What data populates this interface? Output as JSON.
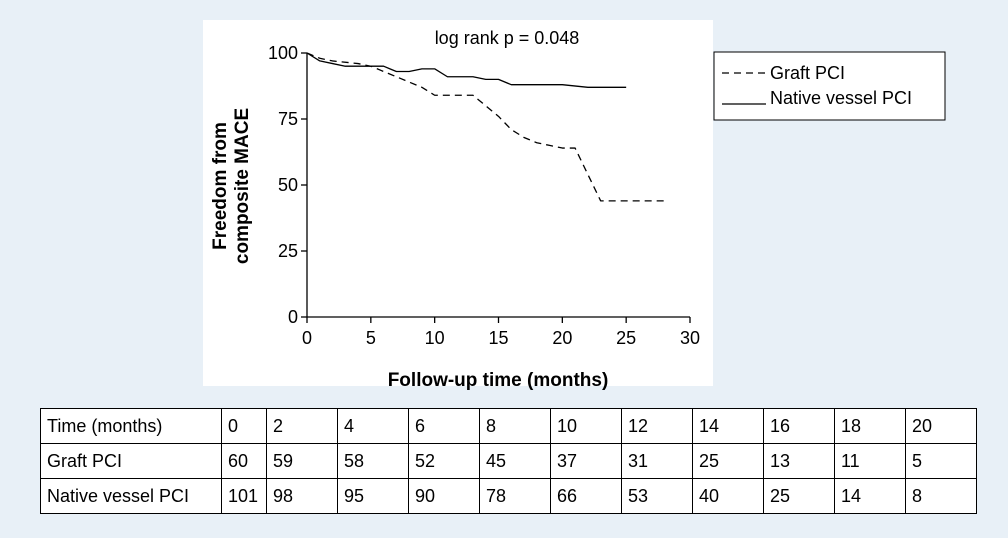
{
  "chart_data": {
    "type": "line",
    "title": "log rank p = 0.048",
    "xlabel": "Follow-up time (months)",
    "ylabel_lines": [
      "Freedom from",
      "composite MACE"
    ],
    "xlim": [
      0,
      30
    ],
    "ylim": [
      0,
      100
    ],
    "xticks": [
      0,
      5,
      10,
      15,
      20,
      25,
      30
    ],
    "yticks": [
      0,
      25,
      50,
      75,
      100
    ],
    "grid": false,
    "legend_position": "top-right",
    "series": [
      {
        "name": "Graft PCI",
        "line_style": "dashed",
        "color": "#000000",
        "x": [
          0,
          1,
          2,
          4,
          5,
          6,
          7,
          8,
          9,
          10,
          12,
          13,
          14,
          15,
          16,
          17,
          18,
          19,
          20,
          21,
          22,
          23,
          25,
          28
        ],
        "y": [
          100,
          98,
          97,
          96,
          95,
          93,
          91,
          89,
          87,
          84,
          84,
          84,
          80,
          76,
          71,
          68,
          66,
          65,
          64,
          64,
          54,
          44,
          44,
          44
        ]
      },
      {
        "name": "Native vessel PCI",
        "line_style": "solid",
        "color": "#000000",
        "x": [
          0,
          1,
          2,
          3,
          5,
          6,
          6.5,
          7,
          8,
          9,
          10,
          11,
          12,
          13,
          14,
          15,
          16,
          18,
          20,
          22,
          25
        ],
        "y": [
          100,
          97,
          96,
          95,
          95,
          95,
          94,
          93,
          93,
          94,
          94,
          91,
          91,
          91,
          90,
          90,
          88,
          88,
          88,
          87,
          87
        ]
      }
    ]
  },
  "risk_table": {
    "header_label": "Time (months)",
    "times": [
      "0",
      "2",
      "4",
      "6",
      "8",
      "10",
      "12",
      "14",
      "16",
      "18",
      "20"
    ],
    "rows": [
      {
        "label": "Graft PCI",
        "values": [
          "60",
          "59",
          "58",
          "52",
          "45",
          "37",
          "31",
          "25",
          "13",
          "11",
          "5"
        ]
      },
      {
        "label": "Native vessel PCI",
        "values": [
          "101",
          "98",
          "95",
          "90",
          "78",
          "66",
          "53",
          "40",
          "25",
          "14",
          "8"
        ]
      }
    ]
  },
  "colors": {
    "background": "#e8f0f7",
    "plot_background": "#ffffff",
    "line": "#000000"
  }
}
